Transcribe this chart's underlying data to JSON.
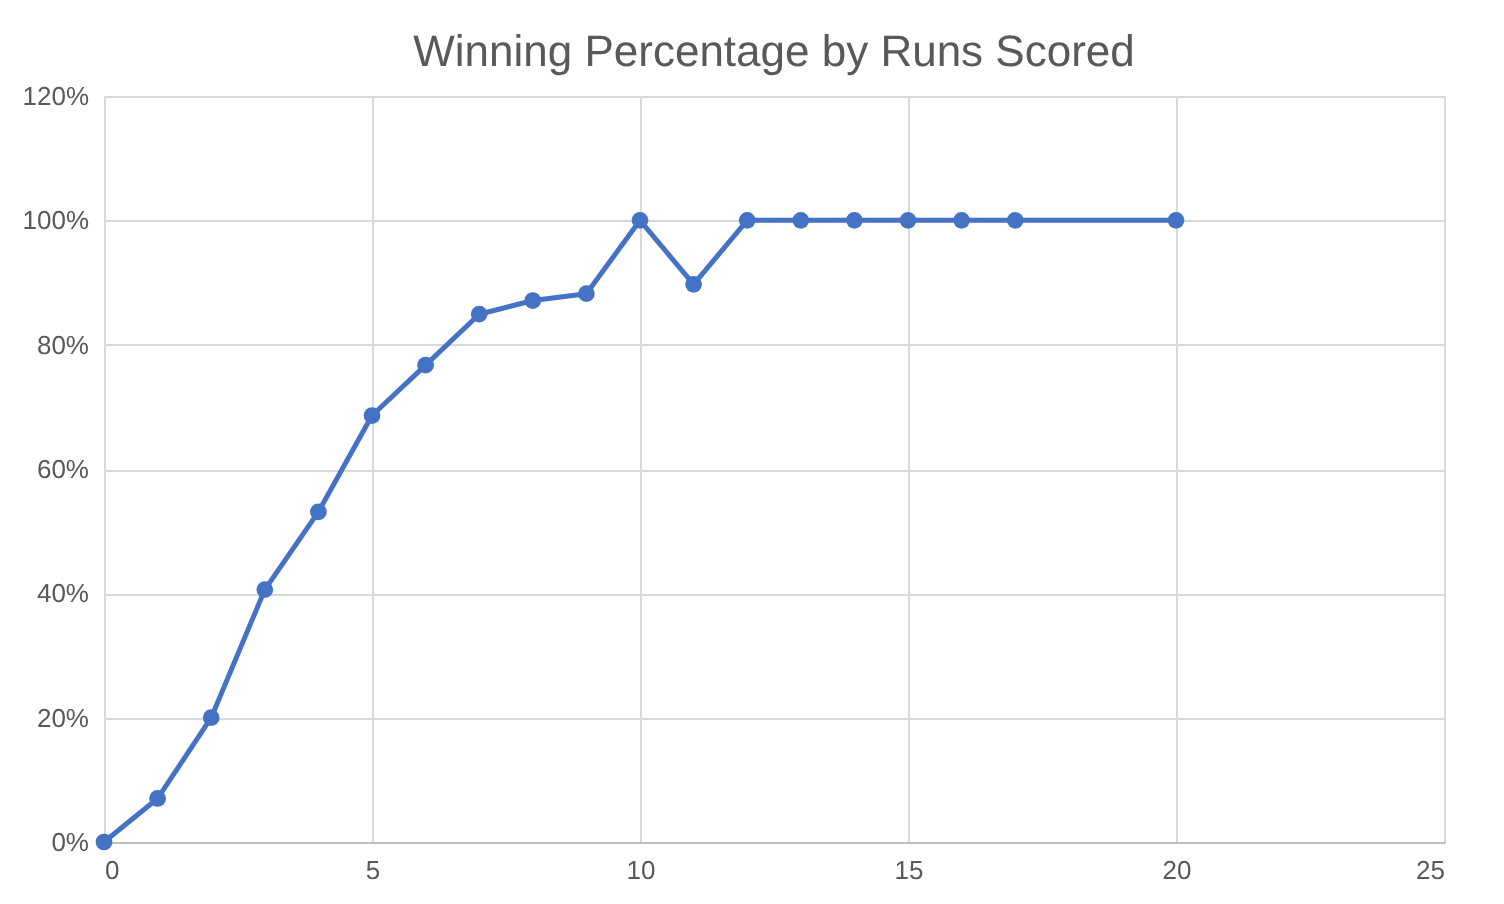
{
  "chart_data": {
    "type": "line",
    "title": "Winning Percentage by Runs Scored",
    "x": [
      0,
      1,
      2,
      3,
      4,
      5,
      6,
      7,
      8,
      9,
      10,
      11,
      12,
      13,
      14,
      15,
      16,
      17,
      20
    ],
    "series": [
      {
        "color": "#4472c4",
        "values": [
          0,
          7,
          20,
          40.6,
          53.1,
          68.6,
          76.7,
          84.9,
          87.1,
          88.2,
          100,
          89.7,
          100,
          100,
          100,
          100,
          100,
          100,
          100
        ]
      }
    ],
    "xlim": [
      0,
      25
    ],
    "xticks": [
      0,
      5,
      10,
      15,
      20,
      25
    ],
    "ylim": [
      0,
      120
    ],
    "yticks": [
      {
        "value": 0,
        "label": "0%"
      },
      {
        "value": 20,
        "label": "20%"
      },
      {
        "value": 40,
        "label": "40%"
      },
      {
        "value": 60,
        "label": "60%"
      },
      {
        "value": 80,
        "label": "80%"
      },
      {
        "value": 100,
        "label": "100%"
      },
      {
        "value": 120,
        "label": "120%"
      }
    ],
    "grid": true,
    "marker": "circle",
    "line_style": "solid"
  }
}
